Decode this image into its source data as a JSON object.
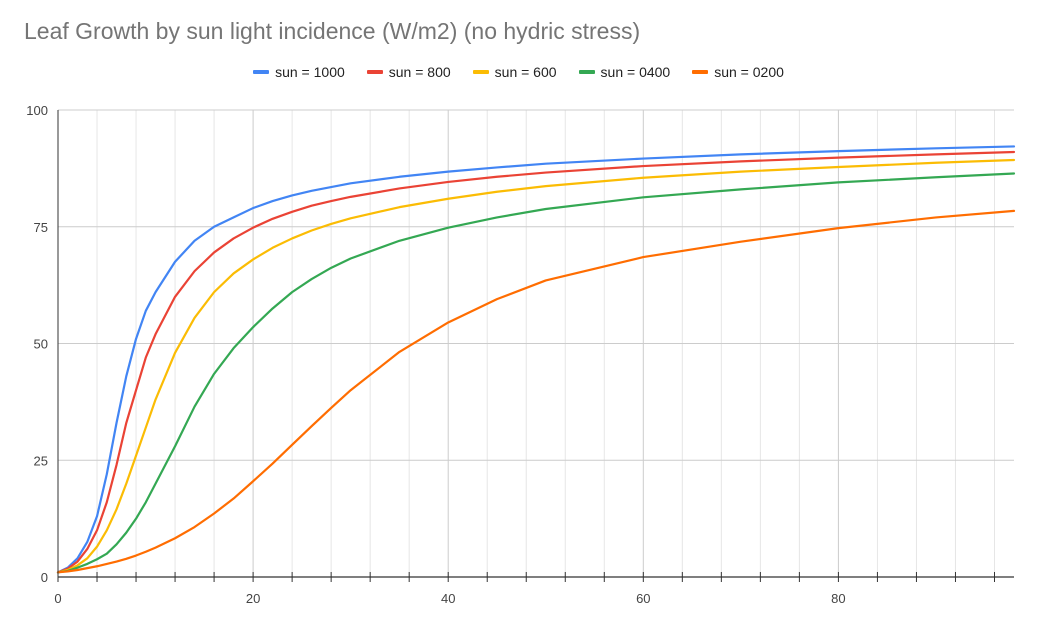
{
  "chart_data": {
    "type": "line",
    "title": "Leaf Growth by sun light incidence (W/m2) (no hydric stress)",
    "xlabel": "",
    "ylabel": "",
    "xlim": [
      0,
      98
    ],
    "ylim": [
      0,
      100
    ],
    "x_ticks": [
      0,
      20,
      40,
      60,
      80
    ],
    "y_ticks": [
      0,
      25,
      50,
      75,
      100
    ],
    "x_minor_step": 4,
    "grid": true,
    "legend_position": "top",
    "x": [
      0,
      1,
      2,
      3,
      4,
      5,
      6,
      7,
      8,
      9,
      10,
      12,
      14,
      16,
      18,
      20,
      22,
      24,
      26,
      28,
      30,
      35,
      40,
      45,
      50,
      60,
      70,
      80,
      90,
      98
    ],
    "series": [
      {
        "name": "sun = 1000",
        "color": "#4285f4",
        "values": [
          1,
          2,
          4,
          7.5,
          13,
          22,
          33,
          43,
          51,
          57,
          61,
          67.5,
          72,
          75,
          77,
          79,
          80.5,
          81.7,
          82.7,
          83.5,
          84.3,
          85.7,
          86.8,
          87.7,
          88.5,
          89.6,
          90.5,
          91.2,
          91.8,
          92.2
        ]
      },
      {
        "name": "sun = 800",
        "color": "#ea4335",
        "values": [
          1,
          1.8,
          3.3,
          6,
          10,
          16,
          24,
          33,
          40,
          47,
          52,
          60,
          65.5,
          69.5,
          72.5,
          74.8,
          76.7,
          78.2,
          79.5,
          80.5,
          81.4,
          83.2,
          84.6,
          85.7,
          86.6,
          88,
          89,
          89.8,
          90.5,
          91
        ]
      },
      {
        "name": "sun = 600",
        "color": "#fbbc04",
        "values": [
          1,
          1.5,
          2.5,
          4,
          6.5,
          10,
          14.5,
          20,
          26,
          32,
          38,
          48,
          55.5,
          61,
          65,
          68,
          70.5,
          72.5,
          74.2,
          75.6,
          76.8,
          79.2,
          81,
          82.5,
          83.7,
          85.5,
          86.8,
          87.8,
          88.7,
          89.3
        ]
      },
      {
        "name": "sun = 0400",
        "color": "#34a853",
        "values": [
          1,
          1.3,
          2,
          2.8,
          3.8,
          5,
          7,
          9.5,
          12.5,
          16,
          20,
          28,
          36.5,
          43.5,
          49,
          53.5,
          57.5,
          61,
          63.8,
          66.2,
          68.2,
          72,
          74.8,
          77,
          78.8,
          81.3,
          83,
          84.5,
          85.6,
          86.4
        ]
      },
      {
        "name": "sun = 0200",
        "color": "#ff6d01",
        "values": [
          1,
          1.2,
          1.5,
          1.9,
          2.3,
          2.8,
          3.3,
          3.9,
          4.6,
          5.4,
          6.3,
          8.3,
          10.7,
          13.6,
          16.8,
          20.5,
          24.3,
          28.3,
          32.3,
          36.2,
          40,
          48.2,
          54.5,
          59.5,
          63.5,
          68.5,
          71.8,
          74.7,
          77,
          78.4
        ]
      }
    ]
  }
}
